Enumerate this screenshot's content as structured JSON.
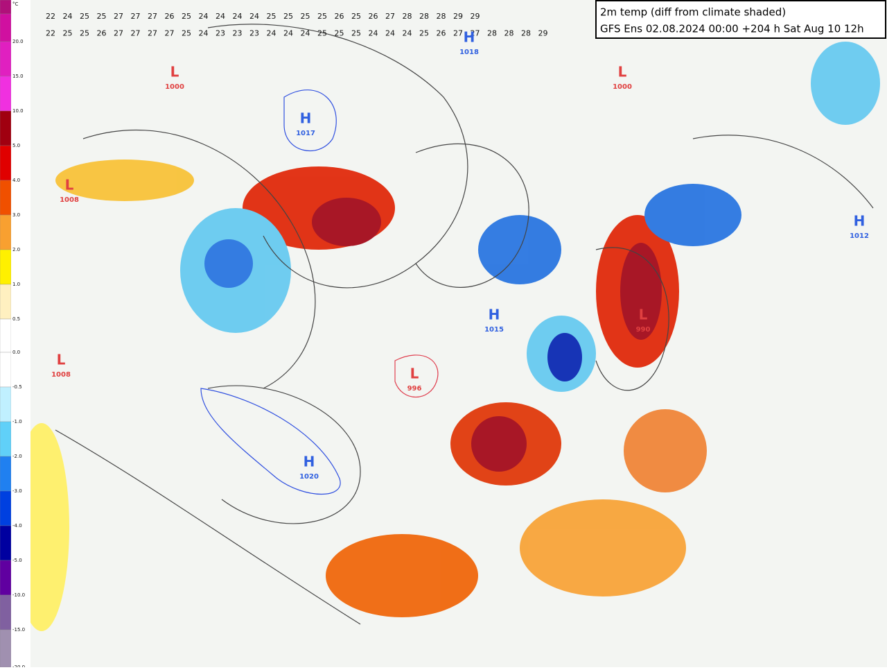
{
  "header": {
    "title": "2m temp (diff from climate shaded)",
    "subtitle": "GFS Ens 02.08.2024 00:00 +204 h Sat Aug 10 12h"
  },
  "legend": {
    "unit": "°C",
    "ticks": [
      "20.0",
      "15.0",
      "10.0",
      "5.0",
      "4.0",
      "3.0",
      "2.0",
      "1.0",
      "0.5",
      "0.0",
      "-0.5",
      "-1.0",
      "-2.0",
      "-3.0",
      "-4.0",
      "-5.0",
      "-10.0",
      "-15.0",
      "-20.0"
    ]
  },
  "pressure_centers": [
    {
      "label": "H",
      "value": "1018"
    },
    {
      "label": "L",
      "value": "1000"
    },
    {
      "label": "L",
      "value": "1000"
    },
    {
      "label": "H",
      "value": "1017"
    },
    {
      "label": "L",
      "value": "1008"
    },
    {
      "label": "H",
      "value": "1015"
    },
    {
      "label": "L",
      "value": "990"
    },
    {
      "label": "L",
      "value": "1008"
    },
    {
      "label": "L",
      "value": "996"
    },
    {
      "label": "H",
      "value": "1020"
    },
    {
      "label": "H",
      "value": "1012"
    }
  ],
  "grid_rows": [
    [
      22,
      24,
      25,
      25,
      27,
      27,
      27,
      26,
      25,
      24,
      24,
      24,
      24,
      25,
      25,
      25,
      25,
      26,
      25,
      26,
      27,
      28,
      28,
      28,
      29,
      29
    ],
    [
      22,
      25,
      25,
      26,
      27,
      27,
      27,
      27,
      25,
      24,
      23,
      23,
      23,
      24,
      24,
      24,
      25,
      25,
      25,
      24,
      24,
      24,
      25,
      26,
      27,
      27,
      28,
      28,
      28,
      29
    ]
  ]
}
